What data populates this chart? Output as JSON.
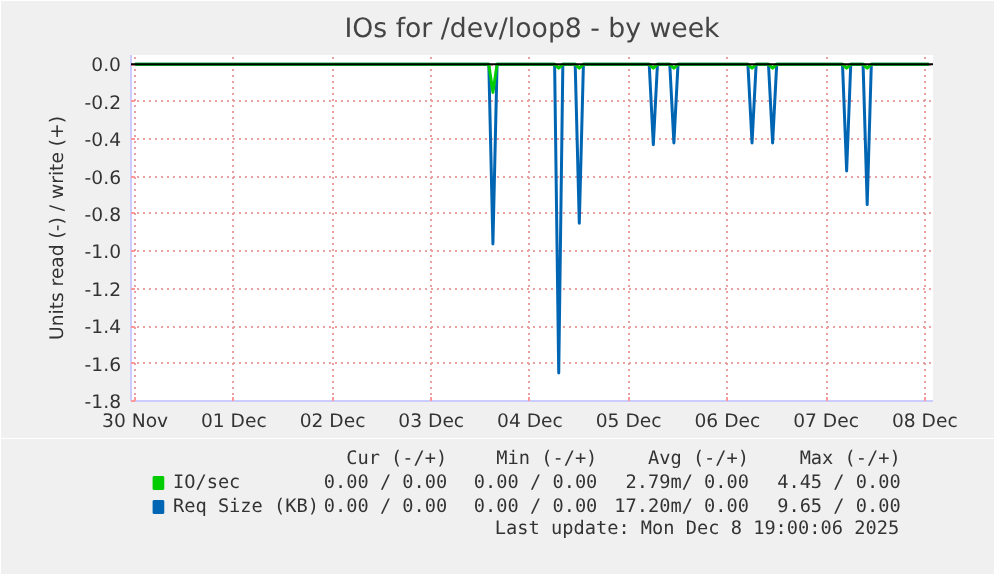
{
  "chart_data": {
    "type": "line",
    "title": "IOs for /dev/loop8 - by week",
    "ylabel": "Units read (-) / write (+)",
    "xlim": [
      "2025-11-29T23:00",
      "2025-12-08T02:00"
    ],
    "xticks": [
      {
        "value": "2025-11-30",
        "label": "30 Nov"
      },
      {
        "value": "2025-12-01",
        "label": "01 Dec"
      },
      {
        "value": "2025-12-02",
        "label": "02 Dec"
      },
      {
        "value": "2025-12-03",
        "label": "03 Dec"
      },
      {
        "value": "2025-12-04",
        "label": "04 Dec"
      },
      {
        "value": "2025-12-05",
        "label": "05 Dec"
      },
      {
        "value": "2025-12-06",
        "label": "06 Dec"
      },
      {
        "value": "2025-12-07",
        "label": "07 Dec"
      },
      {
        "value": "2025-12-08",
        "label": "08 Dec"
      }
    ],
    "ylim": [
      -1.8,
      0.05
    ],
    "yticks": [
      {
        "value": 0,
        "label": "0.0"
      },
      -0.2,
      -0.4,
      -0.6,
      -0.8,
      {
        "value": -1,
        "label": "-1.0"
      },
      -1.2,
      -1.4,
      -1.6,
      -1.8
    ],
    "grid": true,
    "legend": "bottom left",
    "ref_lines": [
      {
        "axis": "y",
        "value": 0,
        "color": "#000000"
      }
    ],
    "series": [
      {
        "name": "IO/sec",
        "color": "#00cc00",
        "x": [
          "2025-11-30T00:00",
          "2025-12-03T14:00",
          "2025-12-03T15:00",
          "2025-12-03T16:00",
          "2025-12-04T06:00",
          "2025-12-04T07:00",
          "2025-12-04T08:00",
          "2025-12-04T11:00",
          "2025-12-04T12:00",
          "2025-12-04T13:00",
          "2025-12-05T05:00",
          "2025-12-05T06:00",
          "2025-12-05T07:00",
          "2025-12-05T10:00",
          "2025-12-05T11:00",
          "2025-12-05T12:00",
          "2025-12-06T05:00",
          "2025-12-06T06:00",
          "2025-12-06T07:00",
          "2025-12-06T10:00",
          "2025-12-06T11:00",
          "2025-12-06T12:00",
          "2025-12-07T04:00",
          "2025-12-07T05:00",
          "2025-12-07T06:00",
          "2025-12-07T09:00",
          "2025-12-07T10:00",
          "2025-12-07T11:00",
          "2025-12-08T01:00"
        ],
        "values": [
          0,
          0,
          -0.15,
          0,
          0,
          -0.02,
          0,
          0,
          -0.02,
          0,
          0,
          -0.02,
          0,
          0,
          -0.02,
          0,
          0,
          -0.02,
          0,
          0,
          -0.02,
          0,
          0,
          -0.02,
          0,
          0,
          -0.02,
          0,
          0
        ]
      },
      {
        "name": "Req Size (KB)",
        "color": "#0066b3",
        "x": [
          "2025-11-30T00:00",
          "2025-12-03T14:00",
          "2025-12-03T15:00",
          "2025-12-03T16:00",
          "2025-12-04T06:00",
          "2025-12-04T07:00",
          "2025-12-04T08:00",
          "2025-12-04T11:00",
          "2025-12-04T12:00",
          "2025-12-04T13:00",
          "2025-12-05T05:00",
          "2025-12-05T06:00",
          "2025-12-05T07:00",
          "2025-12-05T10:00",
          "2025-12-05T11:00",
          "2025-12-05T12:00",
          "2025-12-06T05:00",
          "2025-12-06T06:00",
          "2025-12-06T07:00",
          "2025-12-06T10:00",
          "2025-12-06T11:00",
          "2025-12-06T12:00",
          "2025-12-07T04:00",
          "2025-12-07T05:00",
          "2025-12-07T06:00",
          "2025-12-07T09:00",
          "2025-12-07T10:00",
          "2025-12-07T11:00",
          "2025-12-08T01:00"
        ],
        "values": [
          0,
          0,
          -0.96,
          0,
          0,
          -1.65,
          0,
          0,
          -0.85,
          0,
          0,
          -0.43,
          0,
          0,
          -0.42,
          0,
          0,
          -0.42,
          0,
          0,
          -0.42,
          0,
          0,
          -0.57,
          0,
          0,
          -0.75,
          0,
          0
        ]
      }
    ],
    "annotations": [
      "Cur (-/+)",
      "Min (-/+)",
      "Avg (-/+)",
      "Max (-/+)",
      "0.00 / 0.00",
      "0.00 / 0.00",
      "2.79m/ 0.00",
      "4.45 / 0.00",
      "0.00 / 0.00",
      "0.00 / 0.00",
      "17.20m/ 0.00",
      "9.65 / 0.00",
      "Last update: Mon Dec  8 19:00:06 2025"
    ]
  }
}
